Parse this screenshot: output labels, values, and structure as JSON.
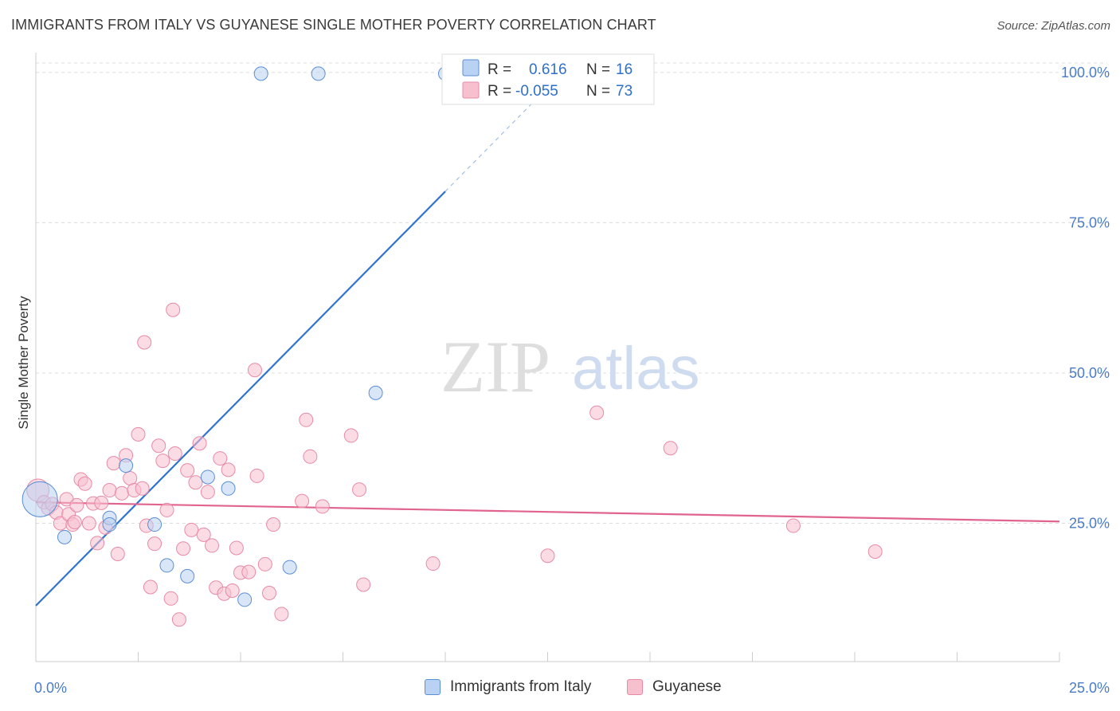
{
  "header": {
    "title": "IMMIGRANTS FROM ITALY VS GUYANESE SINGLE MOTHER POVERTY CORRELATION CHART",
    "source": "Source: ZipAtlas.com"
  },
  "watermark": {
    "zip": "ZIP",
    "atlas": "atlas"
  },
  "colors": {
    "italy_fill": "#b9d1f2",
    "italy_stroke": "#5b8fd6",
    "italy_line": "#2f74d0",
    "guyanese_fill": "#f7c0cf",
    "guyanese_stroke": "#e88aa6",
    "guyanese_line": "#e0648e",
    "tick_text": "#4a7cc8",
    "grid": "#dddddd"
  },
  "legend_top": {
    "rows": [
      {
        "r_label": "R =",
        "r_value": "0.616",
        "n_label": "N =",
        "n_value": "16"
      },
      {
        "r_label": "R =",
        "r_value": "-0.055",
        "n_label": "N =",
        "n_value": "73"
      }
    ]
  },
  "legend_bottom": {
    "italy": "Immigrants from Italy",
    "guyanese": "Guyanese"
  },
  "chart_data": {
    "type": "scatter",
    "title": "IMMIGRANTS FROM ITALY VS GUYANESE SINGLE MOTHER POVERTY CORRELATION CHART",
    "xlabel": "",
    "ylabel": "Single Mother Poverty",
    "xlim": [
      0,
      25
    ],
    "ylim": [
      2,
      102.5
    ],
    "x_tick_labels": [
      "0.0%",
      "25.0%"
    ],
    "y_ticks": [
      25,
      50,
      75,
      100
    ],
    "y_tick_labels": [
      "25.0%",
      "50.0%",
      "75.0%",
      "100.0%"
    ],
    "grid": true,
    "legend_position": "top-center",
    "series": [
      {
        "name": "Immigrants from Italy",
        "color": "#5b8fd6",
        "trend": {
          "x0": 0,
          "y0": 11.3,
          "x1": 10,
          "y1": 80.2,
          "dashed_to_x": 12.5,
          "dashed_to_y": 97.5
        },
        "points": [
          {
            "x": 0.1,
            "y": 29.0,
            "size": 22
          },
          {
            "x": 0.7,
            "y": 22.7
          },
          {
            "x": 1.8,
            "y": 25.9
          },
          {
            "x": 1.8,
            "y": 24.8
          },
          {
            "x": 2.2,
            "y": 34.6
          },
          {
            "x": 2.9,
            "y": 24.8
          },
          {
            "x": 3.2,
            "y": 18.0
          },
          {
            "x": 3.7,
            "y": 16.2
          },
          {
            "x": 4.2,
            "y": 32.7
          },
          {
            "x": 4.7,
            "y": 30.8
          },
          {
            "x": 5.1,
            "y": 12.3
          },
          {
            "x": 6.2,
            "y": 17.7
          },
          {
            "x": 8.3,
            "y": 46.7
          },
          {
            "x": 5.5,
            "y": 99.8
          },
          {
            "x": 6.9,
            "y": 99.8
          },
          {
            "x": 10.0,
            "y": 99.8
          }
        ]
      },
      {
        "name": "Guyanese",
        "color": "#e88aa6",
        "trend": {
          "x0": 0,
          "y0": 28.5,
          "x1": 25,
          "y1": 25.3
        },
        "points": [
          {
            "x": 0.05,
            "y": 30.5,
            "size": 14
          },
          {
            "x": 0.2,
            "y": 28.5
          },
          {
            "x": 0.3,
            "y": 27.5
          },
          {
            "x": 0.4,
            "y": 28.2
          },
          {
            "x": 0.5,
            "y": 26.8
          },
          {
            "x": 0.6,
            "y": 25.0
          },
          {
            "x": 0.75,
            "y": 29.0
          },
          {
            "x": 0.8,
            "y": 26.5
          },
          {
            "x": 0.9,
            "y": 24.8
          },
          {
            "x": 1.0,
            "y": 28.0
          },
          {
            "x": 1.1,
            "y": 32.3
          },
          {
            "x": 1.2,
            "y": 31.6
          },
          {
            "x": 1.3,
            "y": 25.0
          },
          {
            "x": 1.4,
            "y": 28.3
          },
          {
            "x": 1.5,
            "y": 21.7
          },
          {
            "x": 1.6,
            "y": 28.4
          },
          {
            "x": 1.7,
            "y": 24.3
          },
          {
            "x": 1.8,
            "y": 30.5
          },
          {
            "x": 1.9,
            "y": 35.0
          },
          {
            "x": 2.0,
            "y": 19.9
          },
          {
            "x": 2.1,
            "y": 30.0
          },
          {
            "x": 2.2,
            "y": 36.3
          },
          {
            "x": 2.3,
            "y": 32.5
          },
          {
            "x": 2.4,
            "y": 30.5
          },
          {
            "x": 2.5,
            "y": 39.8
          },
          {
            "x": 2.6,
            "y": 30.8
          },
          {
            "x": 2.7,
            "y": 24.6
          },
          {
            "x": 2.8,
            "y": 14.4
          },
          {
            "x": 2.9,
            "y": 21.6
          },
          {
            "x": 3.0,
            "y": 37.9
          },
          {
            "x": 3.1,
            "y": 35.4
          },
          {
            "x": 3.2,
            "y": 27.2
          },
          {
            "x": 3.3,
            "y": 12.5
          },
          {
            "x": 3.4,
            "y": 36.6
          },
          {
            "x": 3.5,
            "y": 9.0
          },
          {
            "x": 3.6,
            "y": 20.8
          },
          {
            "x": 3.7,
            "y": 33.8
          },
          {
            "x": 3.8,
            "y": 23.9
          },
          {
            "x": 3.9,
            "y": 31.8
          },
          {
            "x": 4.0,
            "y": 38.3
          },
          {
            "x": 4.1,
            "y": 23.1
          },
          {
            "x": 4.2,
            "y": 30.2
          },
          {
            "x": 4.3,
            "y": 21.3
          },
          {
            "x": 4.4,
            "y": 14.3
          },
          {
            "x": 4.5,
            "y": 35.8
          },
          {
            "x": 4.6,
            "y": 13.3
          },
          {
            "x": 4.7,
            "y": 33.9
          },
          {
            "x": 4.8,
            "y": 13.8
          },
          {
            "x": 4.9,
            "y": 20.9
          },
          {
            "x": 5.0,
            "y": 16.8
          },
          {
            "x": 5.2,
            "y": 16.9
          },
          {
            "x": 5.4,
            "y": 32.9
          },
          {
            "x": 5.6,
            "y": 18.2
          },
          {
            "x": 5.7,
            "y": 13.4
          },
          {
            "x": 5.8,
            "y": 24.8
          },
          {
            "x": 6.0,
            "y": 9.9
          },
          {
            "x": 6.5,
            "y": 28.7
          },
          {
            "x": 6.6,
            "y": 42.2
          },
          {
            "x": 6.7,
            "y": 36.1
          },
          {
            "x": 7.0,
            "y": 27.8
          },
          {
            "x": 7.7,
            "y": 39.6
          },
          {
            "x": 7.9,
            "y": 30.6
          },
          {
            "x": 8.0,
            "y": 14.8
          },
          {
            "x": 9.7,
            "y": 18.3
          },
          {
            "x": 12.5,
            "y": 19.6
          },
          {
            "x": 13.7,
            "y": 43.4
          },
          {
            "x": 15.5,
            "y": 37.5
          },
          {
            "x": 18.5,
            "y": 24.6
          },
          {
            "x": 20.5,
            "y": 20.3
          },
          {
            "x": 2.65,
            "y": 55.1
          },
          {
            "x": 3.35,
            "y": 60.5
          },
          {
            "x": 5.35,
            "y": 50.5
          },
          {
            "x": 0.95,
            "y": 25.2
          }
        ]
      }
    ]
  }
}
